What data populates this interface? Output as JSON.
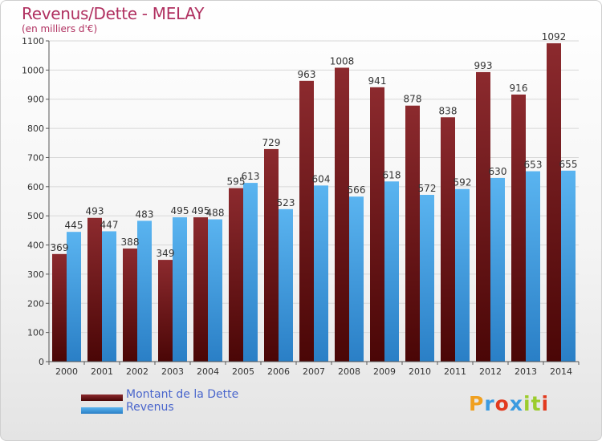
{
  "header": {
    "title": "Revenus/Dette - MELAY",
    "subtitle": "(en milliers d'€)"
  },
  "chart_data": {
    "type": "bar",
    "title": "Revenus/Dette - MELAY",
    "subtitle": "(en milliers d'€)",
    "categories": [
      "2000",
      "2001",
      "2002",
      "2003",
      "2004",
      "2005",
      "2006",
      "2007",
      "2008",
      "2009",
      "2010",
      "2011",
      "2012",
      "2013",
      "2014"
    ],
    "series": [
      {
        "name": "Montant de la Dette",
        "values": [
          369,
          493,
          388,
          349,
          495,
          595,
          729,
          963,
          1008,
          941,
          878,
          838,
          993,
          916,
          1092
        ],
        "color": "#7a1f22"
      },
      {
        "name": "Revenus",
        "values": [
          445,
          447,
          483,
          495,
          488,
          613,
          523,
          604,
          566,
          618,
          572,
          592,
          630,
          653,
          655
        ],
        "color": "#4aa6e8"
      }
    ],
    "yticks": [
      0,
      100,
      200,
      300,
      400,
      500,
      600,
      700,
      800,
      900,
      1000,
      1100
    ],
    "ylim": [
      0,
      1100
    ],
    "grid": true,
    "legend": "bottom-left"
  },
  "legend": {
    "items": [
      {
        "label": "Montant de la Dette",
        "color": "#7a1f22"
      },
      {
        "label": "Revenus",
        "color": "#4aa6e8"
      }
    ]
  },
  "logo": {
    "letters": [
      "P",
      "r",
      "o",
      "x",
      "i",
      "t",
      "i"
    ],
    "colors": [
      "#f0a020",
      "#3c9be0",
      "#e23a1e",
      "#3c9be0",
      "#9ccc2c",
      "#9ccc2c",
      "#e23a1e"
    ]
  }
}
